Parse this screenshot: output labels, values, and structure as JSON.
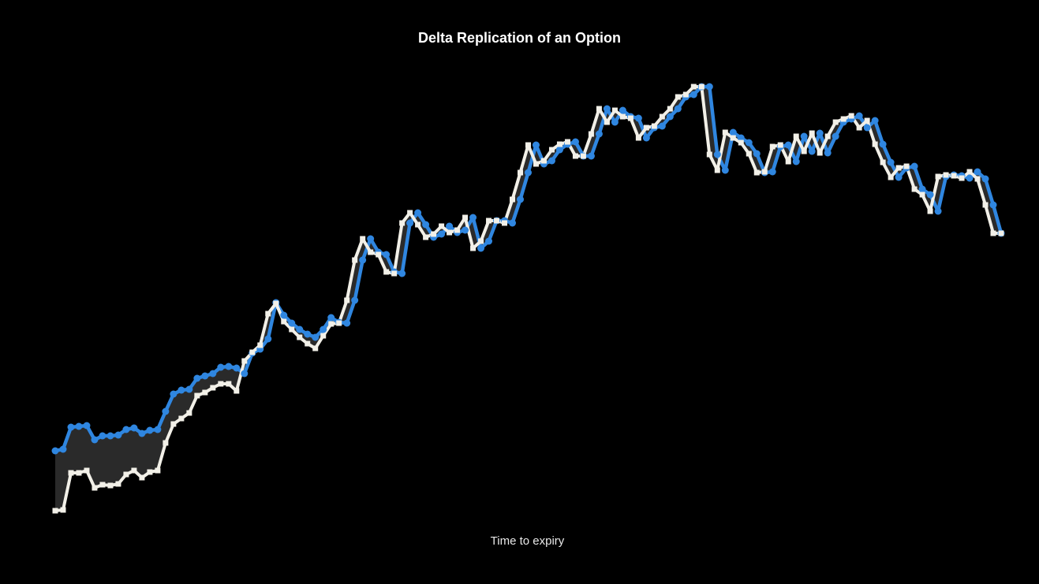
{
  "chart_data": {
    "type": "line",
    "title": "Delta Replication of an Option",
    "xlabel": "Time to expiry",
    "ylabel": "",
    "grid": false,
    "x": [
      0,
      1,
      2,
      3,
      4,
      5,
      6,
      7,
      8,
      9,
      10,
      11,
      12,
      13,
      14,
      15,
      16,
      17,
      18,
      19,
      20,
      21,
      22,
      23,
      24,
      25,
      26,
      27,
      28,
      29,
      30,
      31,
      32,
      33,
      34,
      35,
      36,
      37,
      38,
      39,
      40,
      41,
      42,
      43,
      44,
      45,
      46,
      47,
      48,
      49,
      50,
      51,
      52,
      53,
      54,
      55,
      56,
      57,
      58,
      59,
      60,
      61,
      62,
      63,
      64,
      65,
      66,
      67,
      68,
      69,
      70,
      71,
      72,
      73,
      74,
      75,
      76,
      77,
      78,
      79,
      80,
      81,
      82,
      83,
      84,
      85,
      86,
      87,
      88,
      89,
      90,
      91,
      92,
      93,
      94,
      95,
      96,
      97,
      98,
      99,
      100,
      101,
      102,
      103,
      104,
      105,
      106,
      107,
      108,
      109,
      110,
      111,
      112,
      113,
      114,
      115,
      116,
      117,
      118,
      119,
      120
    ],
    "series": [
      {
        "color": "#2f86e0",
        "marker": "circle",
        "values": [
          572,
          570,
          542,
          541,
          540,
          558,
          553,
          553,
          552,
          545,
          543,
          550,
          546,
          545,
          522,
          500,
          495,
          494,
          480,
          477,
          474,
          466,
          465,
          467,
          474,
          448,
          443,
          430,
          384,
          400,
          410,
          418,
          424,
          428,
          418,
          403,
          409,
          410,
          381,
          330,
          303,
          320,
          323,
          345,
          347,
          283,
          270,
          285,
          301,
          297,
          287,
          295,
          292,
          276,
          315,
          306,
          280,
          280,
          283,
          253,
          219,
          184,
          208,
          204,
          190,
          183,
          180,
          198,
          198,
          170,
          138,
          155,
          140,
          148,
          150,
          175,
          162,
          160,
          148,
          138,
          123,
          120,
          110,
          110,
          196,
          216,
          168,
          175,
          181,
          195,
          219,
          218,
          186,
          184,
          205,
          173,
          192,
          169,
          194,
          173,
          155,
          151,
          147,
          162,
          153,
          183,
          206,
          225,
          213,
          211,
          240,
          247,
          268,
          224,
          222,
          223,
          226,
          218,
          227,
          260,
          296
        ]
      },
      {
        "color": "#f2f0e8",
        "marker": "square",
        "values": [
          648,
          647,
          600,
          600,
          597,
          619,
          615,
          616,
          614,
          602,
          597,
          606,
          599,
          597,
          562,
          538,
          531,
          524,
          502,
          498,
          492,
          487,
          487,
          496,
          458,
          447,
          438,
          398,
          385,
          408,
          418,
          428,
          436,
          442,
          426,
          411,
          410,
          381,
          330,
          303,
          320,
          323,
          345,
          347,
          283,
          270,
          285,
          301,
          297,
          287,
          295,
          292,
          276,
          315,
          306,
          280,
          280,
          283,
          253,
          219,
          184,
          208,
          204,
          190,
          183,
          180,
          198,
          198,
          170,
          138,
          155,
          140,
          148,
          150,
          175,
          162,
          160,
          148,
          138,
          123,
          120,
          110,
          110,
          196,
          216,
          168,
          175,
          181,
          195,
          219,
          218,
          186,
          184,
          205,
          173,
          192,
          169,
          194,
          173,
          155,
          151,
          147,
          162,
          153,
          183,
          206,
          225,
          213,
          211,
          240,
          247,
          268,
          224,
          222,
          223,
          226,
          218,
          227,
          260,
          296,
          296
        ]
      }
    ]
  }
}
